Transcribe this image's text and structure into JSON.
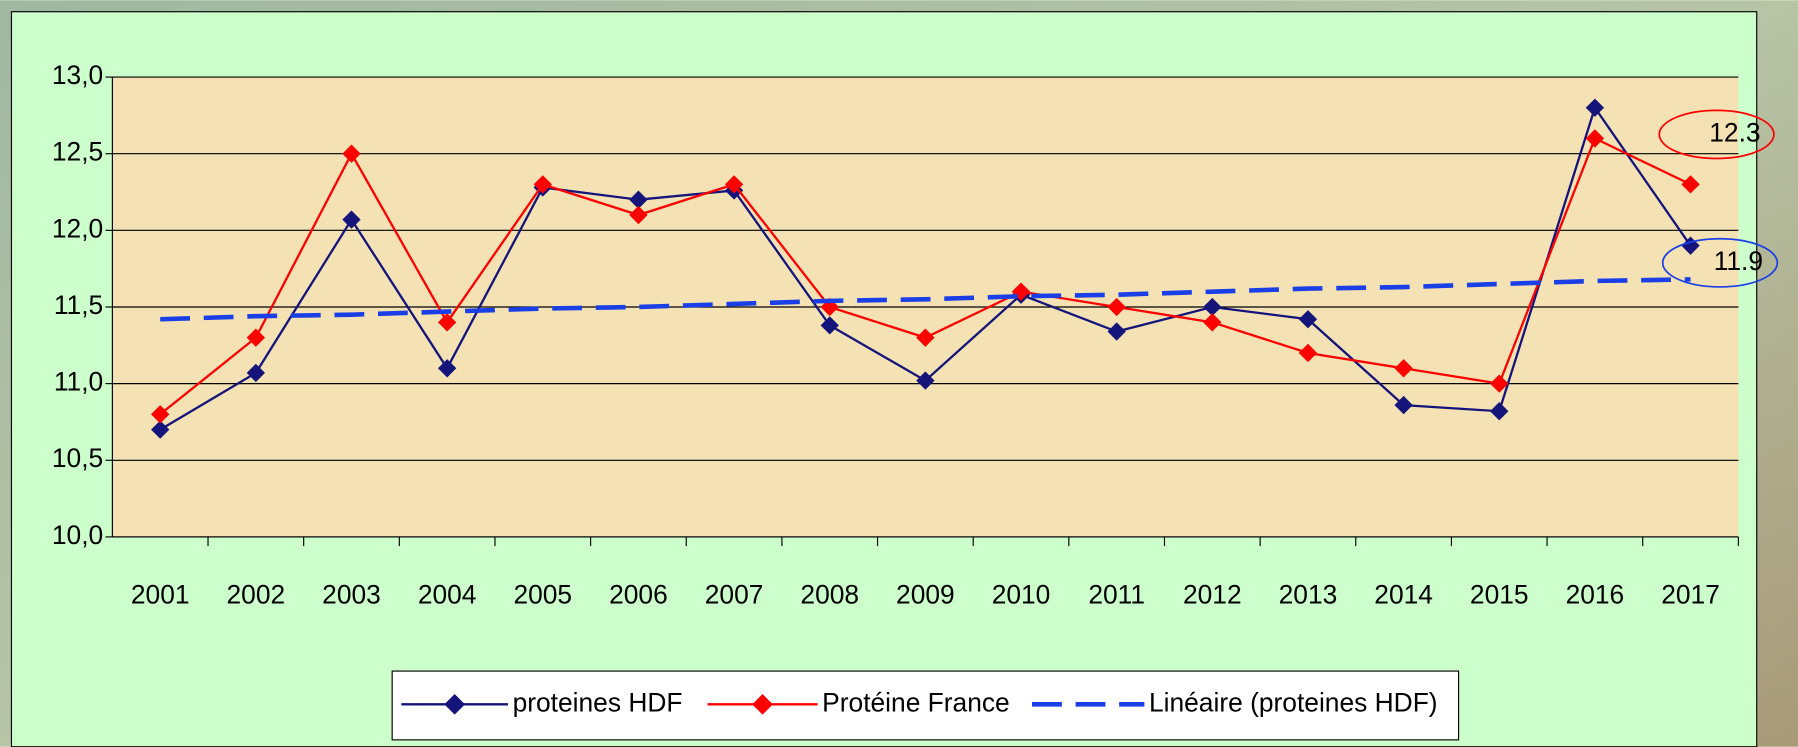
{
  "chart_data": {
    "type": "line",
    "categories": [
      "2001",
      "2002",
      "2003",
      "2004",
      "2005",
      "2006",
      "2007",
      "2008",
      "2009",
      "2010",
      "2011",
      "2012",
      "2013",
      "2014",
      "2015",
      "2016",
      "2017"
    ],
    "series": [
      {
        "name": "proteines HDF",
        "color": "#14147a",
        "marker": "diamond",
        "values": [
          10.7,
          11.07,
          12.07,
          11.1,
          12.28,
          12.2,
          12.26,
          11.38,
          11.02,
          11.58,
          11.34,
          11.5,
          11.42,
          10.86,
          10.82,
          12.8,
          11.9
        ]
      },
      {
        "name": "Protéine France",
        "color": "#ff0000",
        "marker": "diamond",
        "values": [
          10.8,
          11.3,
          12.5,
          11.4,
          12.3,
          12.1,
          12.3,
          11.5,
          11.3,
          11.6,
          11.5,
          11.4,
          11.2,
          11.1,
          11.0,
          12.6,
          12.3
        ]
      },
      {
        "name": "Linéaire (proteines HDF)",
        "color": "#1a3fe6",
        "dashed": true,
        "values": [
          11.42,
          11.44,
          11.45,
          11.47,
          11.49,
          11.5,
          11.52,
          11.54,
          11.55,
          11.57,
          11.58,
          11.6,
          11.62,
          11.63,
          11.65,
          11.67,
          11.68
        ]
      }
    ],
    "ylim": [
      10,
      13
    ],
    "yticks": [
      {
        "value": 10,
        "label": "10,0"
      },
      {
        "value": 10.5,
        "label": "10,5"
      },
      {
        "value": 11,
        "label": "11,0"
      },
      {
        "value": 11.5,
        "label": "11,5"
      },
      {
        "value": 12,
        "label": "12,0"
      },
      {
        "value": 12.5,
        "label": "12,5"
      },
      {
        "value": 13,
        "label": "13,0"
      }
    ],
    "grid": true,
    "annotations": [
      {
        "text": "12.3",
        "color": "#ff0000"
      },
      {
        "text": "11.9",
        "color": "#1a3fe6"
      }
    ]
  }
}
